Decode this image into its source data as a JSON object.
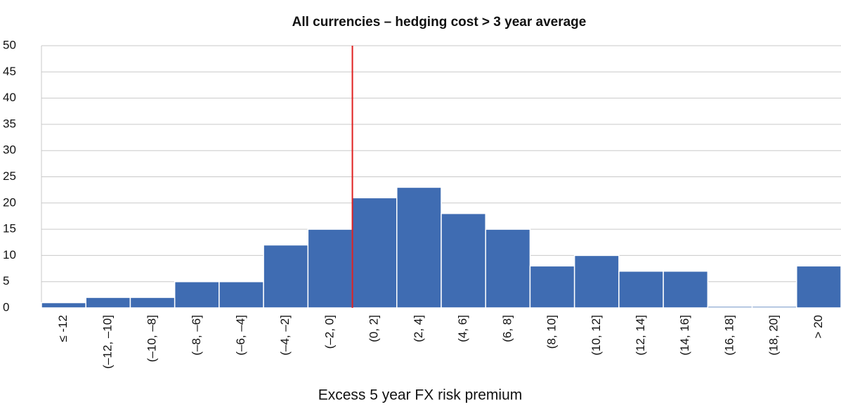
{
  "chart_data": {
    "type": "bar",
    "title": "All currencies –  hedging cost > 3 year average",
    "x_label": "Excess 5 year FX risk premium",
    "categories": [
      "≤ -12",
      "(–12, –10]",
      "(–10, –8]",
      "(–8, –6]",
      "(–6, –4]",
      "(–4, –2]",
      "(–2, 0]",
      "(0, 2]",
      "(2, 4]",
      "(4, 6]",
      "(6, 8]",
      "(8, 10]",
      "(10, 12]",
      "(12, 14]",
      "(14, 16]",
      "(16, 18]",
      "(18, 20]",
      "> 20"
    ],
    "values": [
      1,
      2,
      2,
      5,
      5,
      12,
      15,
      21,
      23,
      18,
      15,
      8,
      10,
      7,
      7,
      0.3,
      0.3,
      8
    ],
    "color": "#3f6cb2",
    "ylim": [
      0,
      50
    ],
    "yticks": [
      0,
      5,
      10,
      15,
      20,
      25,
      30,
      35,
      40,
      45,
      50
    ],
    "grid": true
  }
}
